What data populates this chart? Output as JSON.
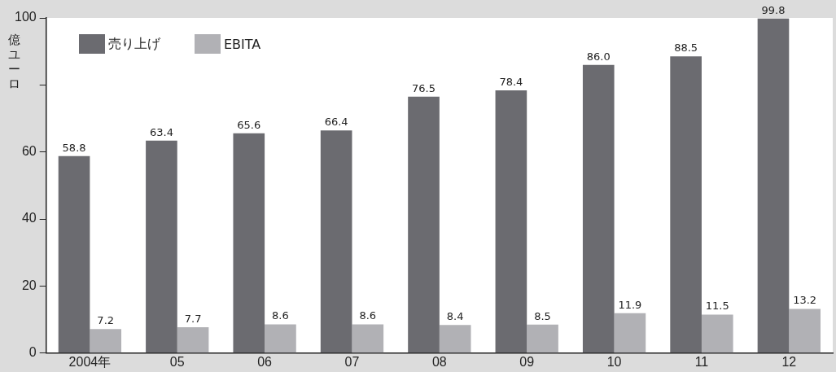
{
  "chart_data": {
    "type": "bar",
    "ylabel": "億ユーロ",
    "categories": [
      "2004年",
      "05",
      "06",
      "07",
      "08",
      "09",
      "10",
      "11",
      "12"
    ],
    "series": [
      {
        "name": "売り上げ",
        "color": "#6b6b70",
        "values": [
          58.8,
          63.4,
          65.6,
          66.4,
          76.5,
          78.4,
          86.0,
          88.5,
          99.8
        ],
        "value_labels": [
          "58.8",
          "63.4",
          "65.6",
          "66.4",
          "76.5",
          "78.4",
          "86.0",
          "88.5",
          "99.8"
        ]
      },
      {
        "name": "EBITA",
        "color": "#b1b1b5",
        "values": [
          7.2,
          7.7,
          8.6,
          8.6,
          8.4,
          8.5,
          11.9,
          11.5,
          13.2
        ],
        "value_labels": [
          "7.2",
          "7.7",
          "8.6",
          "8.6",
          "8.4",
          "8.5",
          "11.9",
          "11.5",
          "13.2"
        ]
      }
    ],
    "ylim": [
      0,
      100
    ],
    "yticks": [
      0,
      20,
      40,
      60,
      {
        "value": 80,
        "label": null
      },
      100
    ],
    "grid": false,
    "legend": "top left"
  }
}
